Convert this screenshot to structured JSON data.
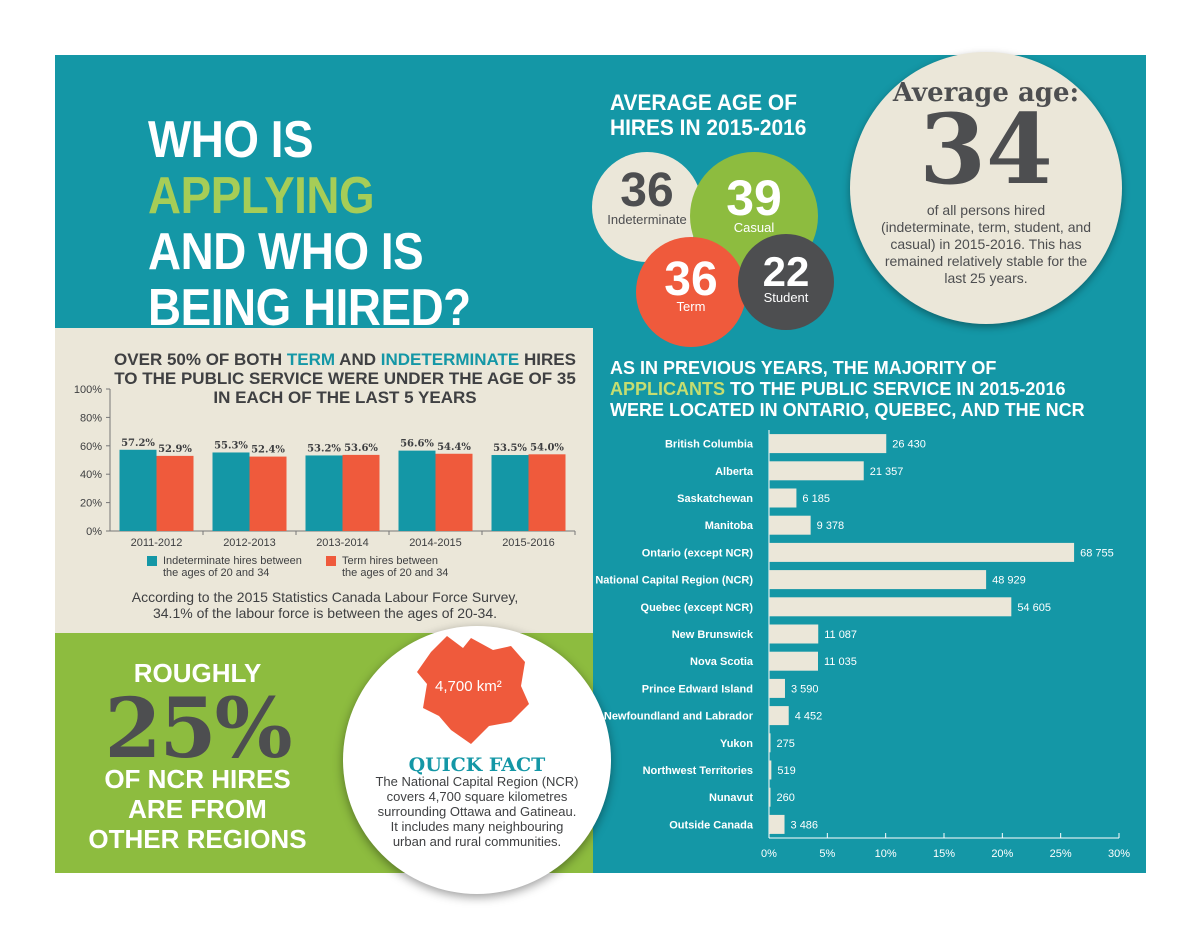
{
  "title": {
    "line1_a": "WHO IS ",
    "line1_b": "APPLYING",
    "line2": "AND WHO IS",
    "line3": "BEING HIRED?"
  },
  "age": {
    "heading_line1": "AVERAGE AGE OF",
    "heading_line2": "HIRES IN 2015-2016",
    "bubbles": [
      {
        "value": "36",
        "label": "Indeterminate",
        "color": "#ebe7d9"
      },
      {
        "value": "39",
        "label": "Casual",
        "color": "#8dbc3f"
      },
      {
        "value": "36",
        "label": "Term",
        "color": "#ef5a3c"
      },
      {
        "value": "22",
        "label": "Student",
        "color": "#4d4e50"
      }
    ],
    "average_label": "Average age:",
    "average_value": "34",
    "average_desc": "of all persons hired (indeterminate, term, student, and casual) in 2015-2016. This has remained relatively stable for the last 25 years."
  },
  "under35": {
    "title_a": "OVER 50% OF BOTH ",
    "title_term": "TERM",
    "title_b": " AND ",
    "title_indet": "INDETERMINATE",
    "title_c": " HIRES TO THE PUBLIC SERVICE WERE UNDER THE AGE OF 35 IN EACH OF THE LAST 5 YEARS",
    "note": "According to the 2015 Statistics Canada Labour Force Survey, 34.1% of the labour force is between the ages of 20-34."
  },
  "quick_fact": {
    "area_label": "4,700 km²",
    "title": "QUICK FACT",
    "text": "The National Capital Region (NCR) covers 4,700 square kilometres surrounding Ottawa and Gatineau. It includes many neighbouring urban and rural communities."
  },
  "ncr": {
    "roughly": "ROUGHLY",
    "percent": "25%",
    "line1": "OF NCR HIRES",
    "line2": "ARE FROM",
    "line3": "OTHER REGIONS"
  },
  "applicants": {
    "title_line1": "AS IN PREVIOUS YEARS, THE MAJORITY OF",
    "title_hl": "APPLICANTS",
    "title_line2_rest": " TO THE PUBLIC SERVICE IN 2015-2016",
    "title_line3": "WERE LOCATED IN ONTARIO, QUEBEC, AND THE NCR"
  },
  "chart_data": [
    {
      "type": "bar",
      "categories": [
        "2011-2012",
        "2012-2013",
        "2013-2014",
        "2014-2015",
        "2015-2016"
      ],
      "series": [
        {
          "name": "Indeterminate hires between the ages of 20 and 34",
          "values": [
            57.2,
            55.3,
            53.2,
            56.6,
            53.5
          ],
          "labels": [
            "57.2%",
            "55.3%",
            "53.2%",
            "56.6%",
            "53.5%"
          ],
          "color": "#1497a6"
        },
        {
          "name": "Term hires between the ages of 20 and 34",
          "values": [
            52.9,
            52.4,
            53.6,
            54.4,
            54.0
          ],
          "labels": [
            "52.9%",
            "52.4%",
            "53.6%",
            "54.4%",
            "54.0%"
          ],
          "color": "#ef5a3c"
        }
      ],
      "ylim": [
        0,
        100
      ],
      "yticks": [
        "0%",
        "20%",
        "40%",
        "60%",
        "80%",
        "100%"
      ],
      "legend": "bottom"
    },
    {
      "type": "bar",
      "orientation": "horizontal",
      "categories": [
        "British Columbia",
        "Alberta",
        "Saskatchewan",
        "Manitoba",
        "Ontario (except NCR)",
        "National Capital Region (NCR)",
        "Quebec (except NCR)",
        "New Brunswick",
        "Nova Scotia",
        "Prince Edward Island",
        "Newfoundland and Labrador",
        "Yukon",
        "Northwest Territories",
        "Nunavut",
        "Outside Canada"
      ],
      "values": [
        26430,
        21357,
        6185,
        9378,
        68755,
        48929,
        54605,
        11087,
        11035,
        3590,
        4452,
        275,
        519,
        260,
        3486
      ],
      "value_labels": [
        "26 430",
        "21 357",
        "6 185",
        "9 378",
        "68 755",
        "48 929",
        "54 605",
        "11 087",
        "11 035",
        "3 590",
        "4 452",
        "275",
        "519",
        "260",
        "3 486"
      ],
      "percent_of_total": [
        10.05,
        8.12,
        2.35,
        3.57,
        26.15,
        18.61,
        20.77,
        4.22,
        4.2,
        1.37,
        1.69,
        0.1,
        0.2,
        0.1,
        1.33
      ],
      "xlim": [
        0,
        30
      ],
      "xticks": [
        "0%",
        "5%",
        "10%",
        "15%",
        "20%",
        "25%",
        "30%"
      ],
      "color": "#ebe7d9"
    }
  ]
}
